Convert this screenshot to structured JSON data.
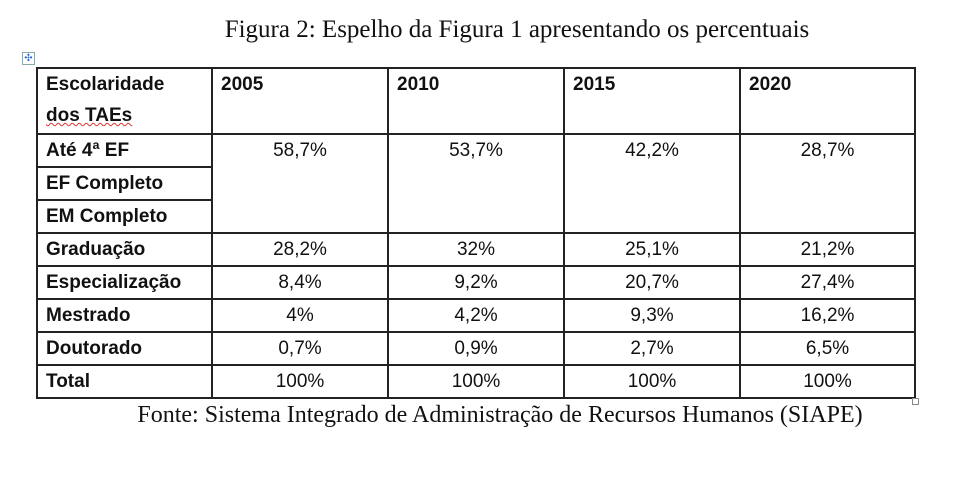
{
  "title": "Figura 2: Espelho da Figura 1 apresentando os percentuais",
  "table": {
    "header": {
      "label_line1": "Escolaridade",
      "label_line2": "dos TAEs",
      "years": [
        "2005",
        "2010",
        "2015",
        "2020"
      ]
    },
    "merged_group": {
      "labels": [
        "Até 4ª EF",
        "EF Completo",
        "EM Completo"
      ],
      "values": [
        "58,7%",
        "53,7%",
        "42,2%",
        "28,7%"
      ]
    },
    "rows": [
      {
        "label": "Graduação",
        "values": [
          "28,2%",
          "32%",
          "25,1%",
          "21,2%"
        ]
      },
      {
        "label": "Especialização",
        "values": [
          "8,4%",
          "9,2%",
          "20,7%",
          "27,4%"
        ]
      },
      {
        "label": "Mestrado",
        "values": [
          "4%",
          "4,2%",
          "9,3%",
          "16,2%"
        ]
      },
      {
        "label": "Doutorado",
        "values": [
          "0,7%",
          "0,9%",
          "2,7%",
          "6,5%"
        ]
      },
      {
        "label": "Total",
        "values": [
          "100%",
          "100%",
          "100%",
          "100%"
        ]
      }
    ]
  },
  "source": "Fonte: Sistema Integrado de Administração de Recursos Humanos (SIAPE)"
}
